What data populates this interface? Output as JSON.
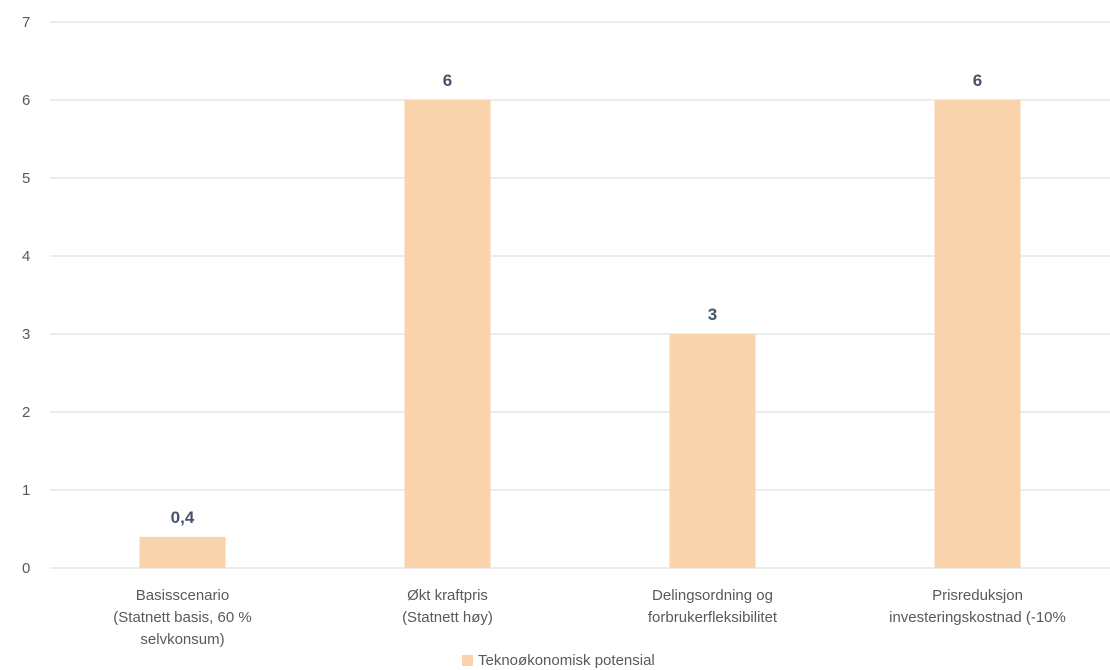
{
  "chart_data": {
    "type": "bar",
    "title": "",
    "xlabel": "",
    "ylabel": "",
    "ylim": [
      0,
      7
    ],
    "yticks": [
      "0",
      "1",
      "2",
      "3",
      "4",
      "5",
      "6",
      "7"
    ],
    "grid": true,
    "legend_position": "bottom",
    "categories": [
      [
        "Basisscenario",
        "(Statnett basis, 60 %",
        "selvkonsum)"
      ],
      [
        "Økt kraftpris",
        "(Statnett høy)"
      ],
      [
        "Delingsordning og",
        "forbrukerfleksibilitet"
      ],
      [
        "Prisreduksjon",
        "investeringskostnad (-10%"
      ]
    ],
    "series": [
      {
        "name": "Teknoøkonomisk potensial",
        "values": [
          0.4,
          6,
          3,
          6
        ],
        "labels": [
          "0,4",
          "6",
          "3",
          "6"
        ],
        "color": "#F8D3AB"
      }
    ]
  },
  "colors": {
    "bar": "#F8D3AB",
    "gridline": "#D9D9D9",
    "axis_text": "#595959",
    "data_label": "#44546A"
  }
}
